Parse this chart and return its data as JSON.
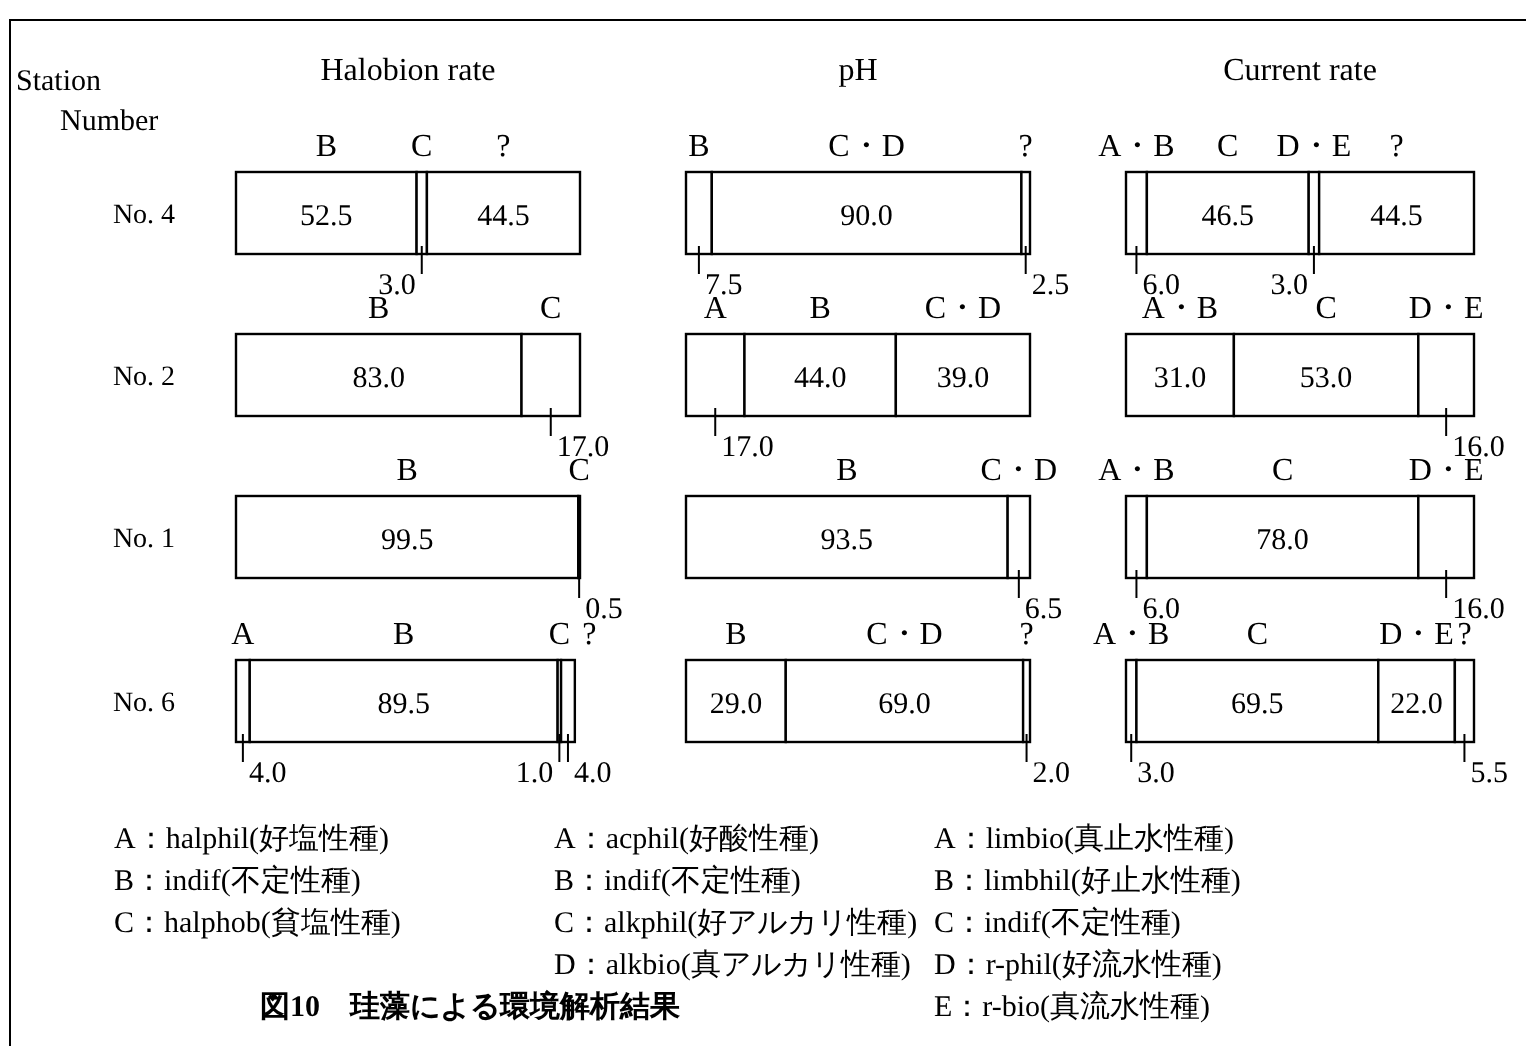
{
  "chart_data": [
    {
      "type": "bar",
      "orientation": "horizontal",
      "stacked": true,
      "title": "Halobion rate",
      "ylabel": "Station Number",
      "tick_labels": "y",
      "categories": [
        "No. 4",
        "No. 2",
        "No. 1",
        "No. 6"
      ],
      "series": [
        {
          "name": "A",
          "color": "#ffffff",
          "values": [
            null,
            null,
            null,
            4.0
          ],
          "value_labels": [
            null,
            null,
            null,
            "4.0"
          ]
        },
        {
          "name": "B",
          "color": "#ffffff",
          "values": [
            52.5,
            83.0,
            99.5,
            89.5
          ],
          "value_labels": [
            "52.5",
            "83.0",
            "99.5",
            "89.5"
          ]
        },
        {
          "name": "C",
          "color": "#ffffff",
          "values": [
            3.0,
            17.0,
            0.5,
            1.0
          ],
          "value_labels": [
            "3.0",
            "17.0",
            "0.5",
            "1.0"
          ]
        },
        {
          "name": "?",
          "color": "#ffffff",
          "values": [
            44.5,
            null,
            null,
            4.0
          ],
          "value_labels": [
            "44.5",
            null,
            null,
            "4.0"
          ]
        }
      ],
      "annotations": [
        "A：halphil(好塩性種)",
        "B：indif(不定性種)",
        "C：halphob(貧塩性種)",
        "図10　珪藻による環境解析結果"
      ]
    },
    {
      "type": "bar",
      "orientation": "horizontal",
      "stacked": true,
      "title": "pH",
      "tick_labels": false,
      "categories": [
        null,
        null,
        null,
        null
      ],
      "series": [
        {
          "name": "A",
          "color": "#ffffff",
          "values": [
            null,
            17.0,
            null,
            null
          ],
          "value_labels": [
            null,
            "17.0",
            null,
            null
          ]
        },
        {
          "name": "B",
          "color": "#ffffff",
          "values": [
            7.5,
            44.0,
            93.5,
            29.0
          ],
          "value_labels": [
            "7.5",
            "44.0",
            "93.5",
            "29.0"
          ]
        },
        {
          "name": "C・D",
          "color": "#ffffff",
          "values": [
            90.0,
            39.0,
            6.5,
            69.0
          ],
          "value_labels": [
            "90.0",
            "39.0",
            "6.5",
            "69.0"
          ]
        },
        {
          "name": "?",
          "color": "#ffffff",
          "values": [
            2.5,
            null,
            null,
            2.0
          ],
          "value_labels": [
            "2.5",
            null,
            null,
            "2.0"
          ]
        }
      ],
      "annotations": [
        "A：acphil(好酸性種)",
        "B：indif(不定性種)",
        "C：alkphil(好アルカリ性種)",
        "D：alkbio(真アルカリ性種)"
      ]
    },
    {
      "type": "bar",
      "orientation": "horizontal",
      "stacked": true,
      "title": "Current rate",
      "tick_labels": false,
      "categories": [
        null,
        null,
        null,
        null
      ],
      "series": [
        {
          "name": "A・B",
          "color": "#ffffff",
          "values": [
            6.0,
            31.0,
            6.0,
            3.0
          ],
          "value_labels": [
            "6.0",
            "31.0",
            "6.0",
            "3.0"
          ]
        },
        {
          "name": "C",
          "color": "#ffffff",
          "values": [
            46.5,
            53.0,
            78.0,
            69.5
          ],
          "value_labels": [
            "46.5",
            "53.0",
            "78.0",
            "69.5"
          ]
        },
        {
          "name": "D・E",
          "color": "#ffffff",
          "values": [
            3.0,
            16.0,
            16.0,
            22.0
          ],
          "value_labels": [
            "3.0",
            "16.0",
            "16.0",
            "22.0"
          ]
        },
        {
          "name": "?",
          "color": "#ffffff",
          "values": [
            44.5,
            null,
            null,
            5.5
          ],
          "value_labels": [
            "44.5",
            null,
            null,
            "5.5"
          ]
        }
      ],
      "annotations": [
        "A：limbio(真止水性種)",
        "B：limbhil(好止水性種)",
        "C：indif(不定性種)",
        "D：r-phil(好流水性種)",
        "E：r-bio(真流水性種)"
      ]
    }
  ]
}
